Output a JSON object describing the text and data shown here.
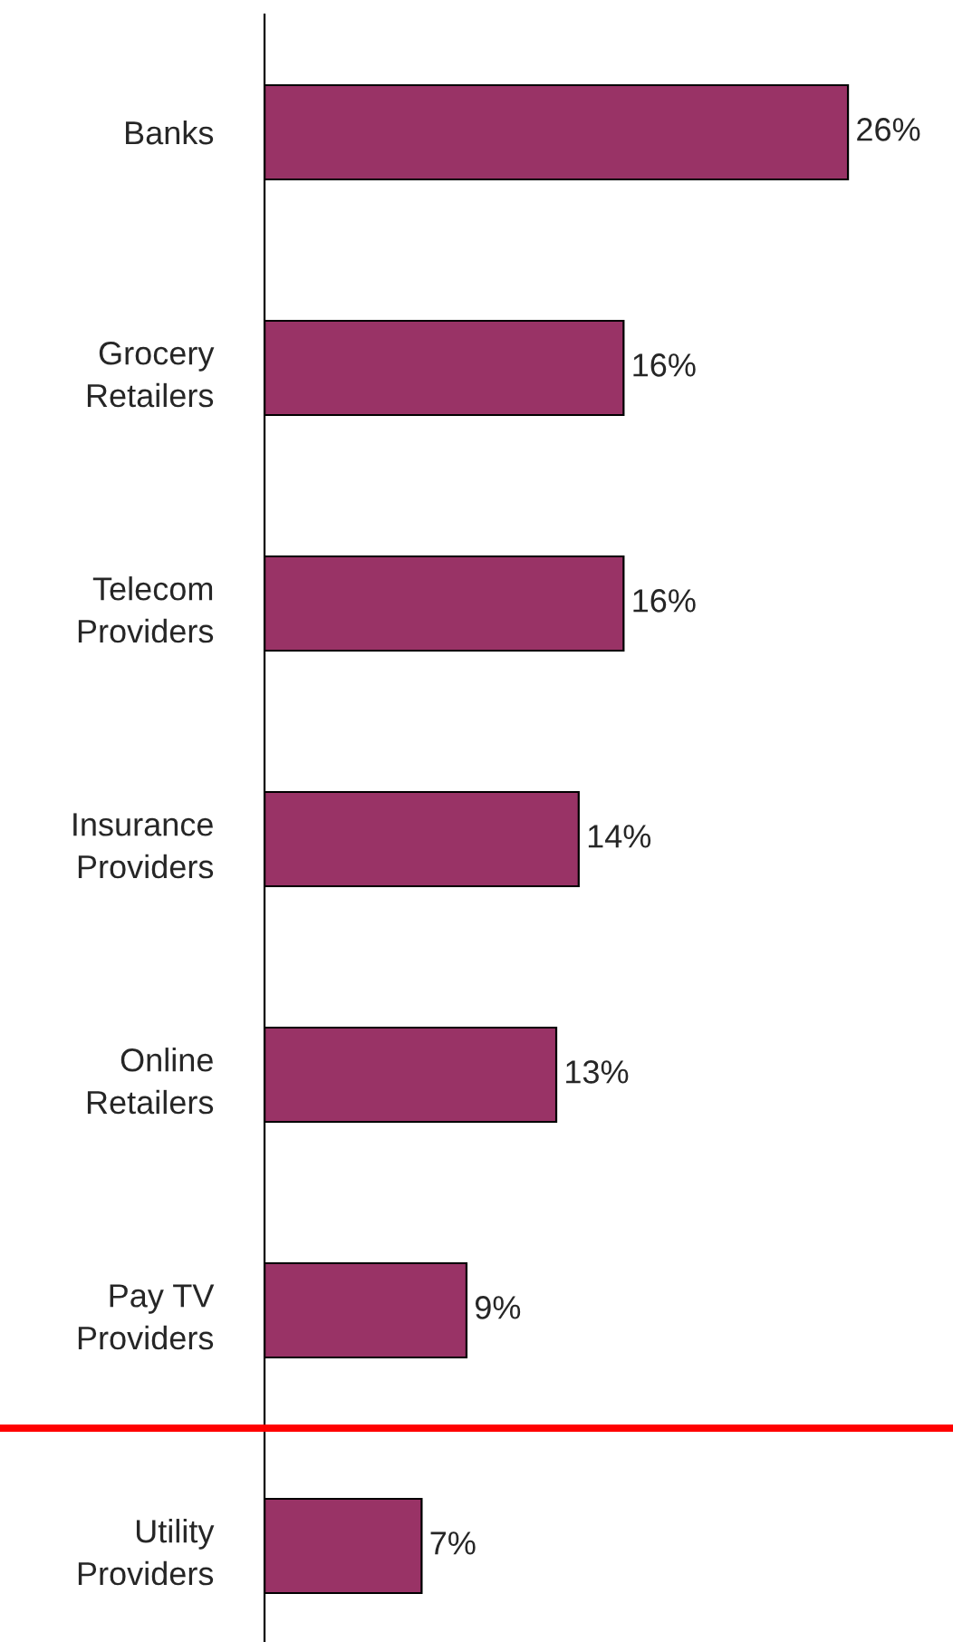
{
  "chart_data": {
    "type": "bar",
    "orientation": "horizontal",
    "categories": [
      "Banks",
      "Grocery\nRetailers",
      "Telecom\nProviders",
      "Insurance\nProviders",
      "Online\nRetailers",
      "Pay TV\nProviders",
      "Utility\nProviders"
    ],
    "values": [
      26,
      16,
      16,
      14,
      13,
      9,
      7
    ],
    "color": "#993366",
    "value_labels": [
      "26%",
      "16%",
      "16%",
      "14%",
      "13%",
      "9%",
      "7%"
    ],
    "tick_labels": "y",
    "grid": false,
    "legend": false
  }
}
